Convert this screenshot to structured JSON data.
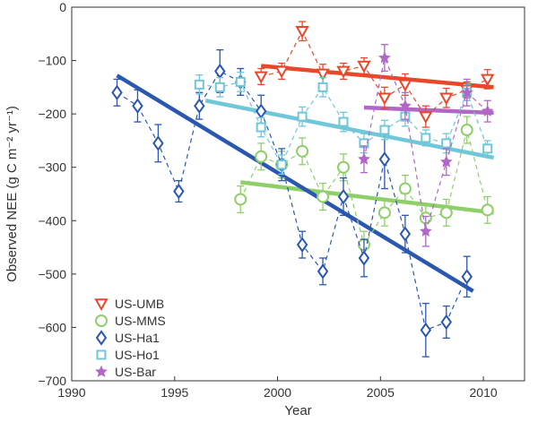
{
  "chart_data": {
    "type": "scatter",
    "xlabel": "Year",
    "ylabel": "Observed NEE (g C m⁻² yr⁻¹)",
    "xlim": [
      1990,
      2012
    ],
    "ylim": [
      -700,
      0
    ],
    "xticks": [
      1990,
      1995,
      2000,
      2005,
      2010
    ],
    "yticks": [
      0,
      -100,
      -200,
      -300,
      -400,
      -500,
      -600,
      -700
    ],
    "grid": false,
    "legend_position": "bottom-left",
    "series": [
      {
        "name": "US-UMB",
        "marker": "triangle-down",
        "color": "#e8472a",
        "x": [
          1999.2,
          2000.2,
          2001.2,
          2002.2,
          2003.2,
          2004.2,
          2005.2,
          2006.2,
          2007.2,
          2008.2,
          2009.2,
          2010.2
        ],
        "y": [
          -130,
          -120,
          -45,
          -125,
          -120,
          -110,
          -170,
          -145,
          -205,
          -170,
          -155,
          -135
        ],
        "err": [
          15,
          15,
          18,
          18,
          15,
          15,
          20,
          20,
          20,
          18,
          15,
          18
        ],
        "trend": {
          "x": [
            1999.2,
            2010.5
          ],
          "y": [
            -110,
            -150
          ]
        }
      },
      {
        "name": "US-MMS",
        "marker": "circle",
        "color": "#8fcf6a",
        "x": [
          1998.2,
          1999.2,
          2000.2,
          2001.2,
          2002.2,
          2003.2,
          2004.2,
          2005.2,
          2006.2,
          2007.2,
          2008.2,
          2009.2,
          2010.2
        ],
        "y": [
          -360,
          -280,
          -295,
          -270,
          -355,
          -300,
          -445,
          -385,
          -340,
          -395,
          -385,
          -230,
          -380
        ],
        "err": [
          25,
          25,
          25,
          25,
          25,
          25,
          25,
          25,
          25,
          25,
          25,
          25,
          25
        ],
        "trend": {
          "x": [
            1998.2,
            2010.5
          ],
          "y": [
            -328,
            -385
          ]
        }
      },
      {
        "name": "US-Ha1",
        "marker": "diamond",
        "color": "#2a57b0",
        "x": [
          1992.2,
          1993.2,
          1994.2,
          1995.2,
          1996.2,
          1997.2,
          1998.2,
          1999.2,
          2000.2,
          2001.2,
          2002.2,
          2003.2,
          2004.2,
          2005.2,
          2006.2,
          2007.2,
          2008.2,
          2009.2
        ],
        "y": [
          -160,
          -185,
          -255,
          -345,
          -185,
          -120,
          -140,
          -195,
          -295,
          -445,
          -495,
          -355,
          -470,
          -285,
          -425,
          -605,
          -590,
          -505
        ],
        "err": [
          25,
          30,
          35,
          20,
          25,
          40,
          25,
          30,
          30,
          25,
          25,
          35,
          35,
          55,
          35,
          50,
          30,
          38
        ],
        "trend": {
          "x": [
            1992.2,
            2009.5
          ],
          "y": [
            -128,
            -532
          ]
        }
      },
      {
        "name": "US-Ho1",
        "marker": "square",
        "color": "#6fc7d8",
        "x": [
          1996.2,
          1997.2,
          1998.2,
          1999.2,
          2000.2,
          2001.2,
          2002.2,
          2003.2,
          2004.2,
          2005.2,
          2006.2,
          2007.2,
          2008.2,
          2009.2,
          2010.2
        ],
        "y": [
          -145,
          -150,
          -140,
          -225,
          -295,
          -205,
          -150,
          -215,
          -255,
          -230,
          -205,
          -245,
          -255,
          -160,
          -265
        ],
        "err": [
          18,
          18,
          18,
          18,
          18,
          18,
          18,
          18,
          18,
          18,
          18,
          15,
          18,
          15,
          15
        ],
        "trend": {
          "x": [
            1996.5,
            2010.5
          ],
          "y": [
            -175,
            -282
          ]
        }
      },
      {
        "name": "US-Bar",
        "marker": "star",
        "color": "#b067c6",
        "x": [
          2004.2,
          2005.2,
          2006.2,
          2007.2,
          2008.2,
          2009.2,
          2010.2
        ],
        "y": [
          -285,
          -95,
          -185,
          -420,
          -290,
          -160,
          -195
        ],
        "err": [
          25,
          25,
          25,
          28,
          25,
          25,
          20
        ],
        "trend": {
          "x": [
            2004.2,
            2010.5
          ],
          "y": [
            -188,
            -198
          ]
        }
      }
    ]
  }
}
